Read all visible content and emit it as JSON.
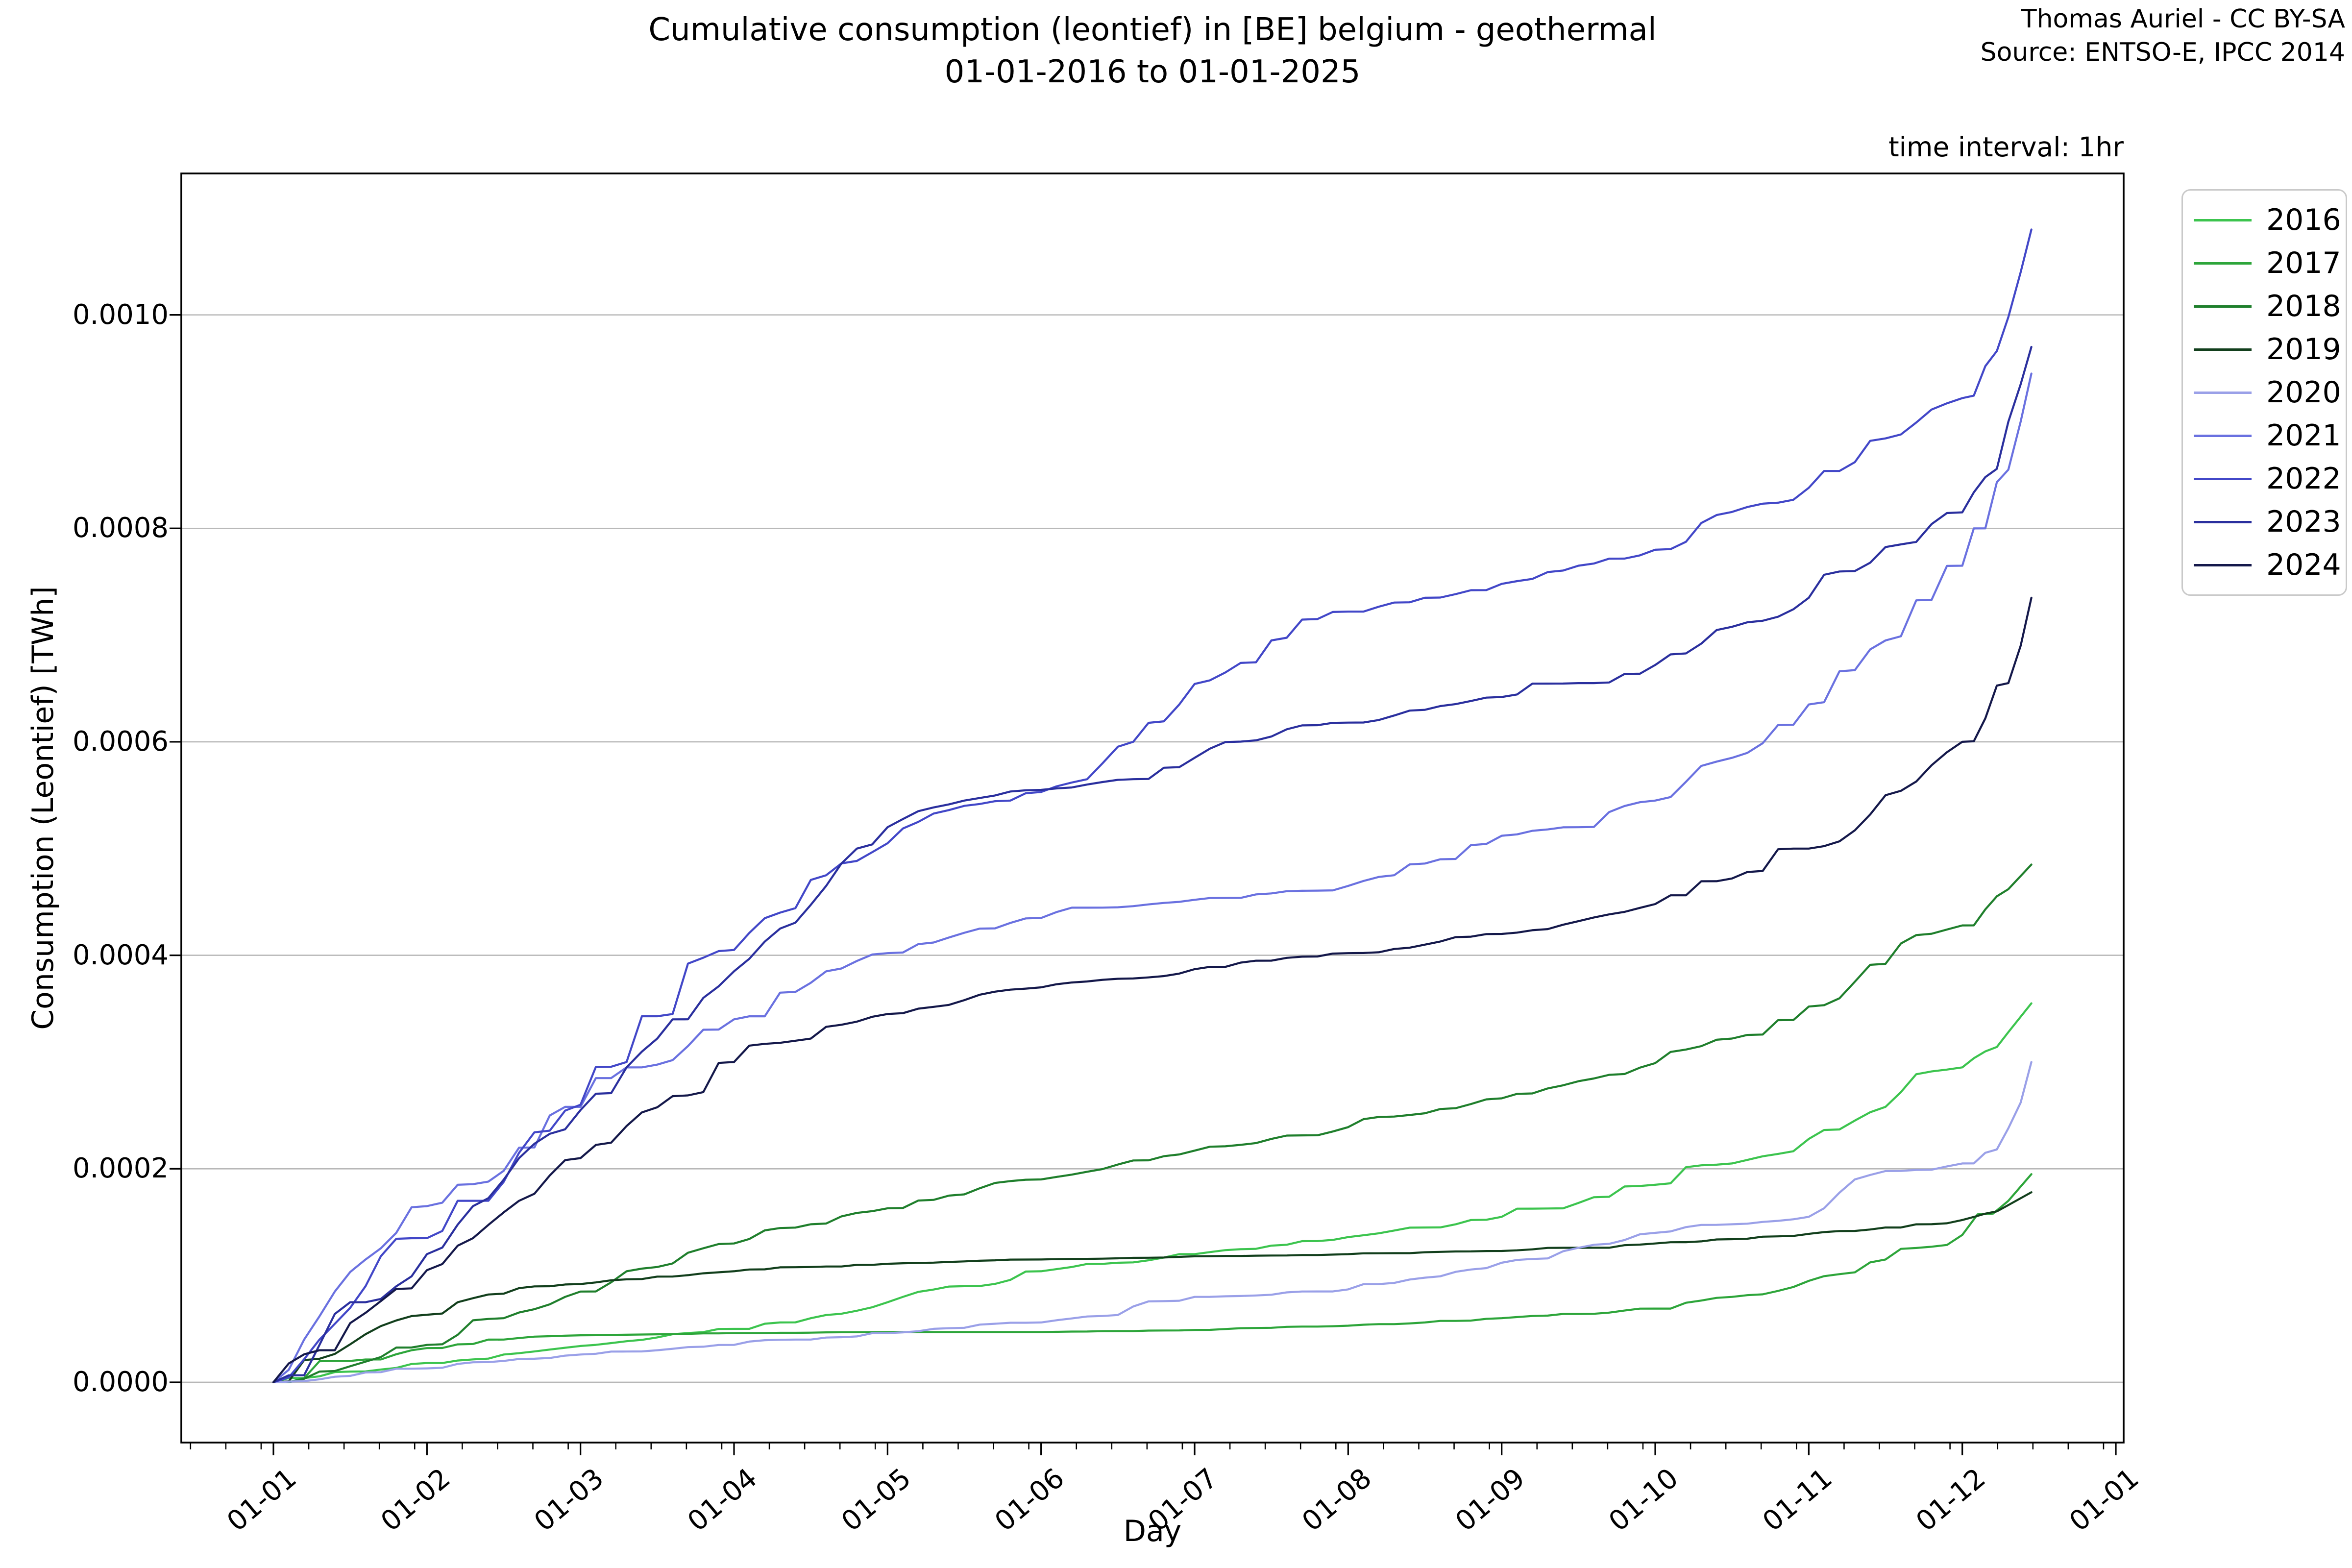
{
  "header": {
    "title_line1": "Cumulative consumption (leontief) in [BE] belgium - geothermal",
    "title_line2": "01-01-2016 to 01-01-2025",
    "attribution_line1": "Thomas Auriel - CC BY-SA",
    "attribution_line2": "Source: ENTSO-E, IPCC 2014",
    "time_interval_note": "time interval: 1hr"
  },
  "chart_data": {
    "type": "line",
    "title": "Cumulative consumption (leontief) in [BE] belgium - geothermal\n01-01-2016 to 01-01-2025",
    "xlabel": "Day",
    "ylabel": "Consumption (Leontief) [TWh]",
    "x_unit": "months since 01-01",
    "xlim": [
      -0.6,
      12.051
    ],
    "ylim": [
      -5.65e-05,
      0.0011325
    ],
    "grid": "horizontal",
    "grid_color": "#b7b7b7",
    "frame_color": "#000000",
    "legend_position": "upper right outside",
    "x_ticks": [
      0,
      1,
      2,
      3,
      4,
      5,
      6,
      7,
      8,
      9,
      10,
      11,
      12
    ],
    "x_tick_labels": [
      "01-01",
      "01-02",
      "01-03",
      "01-04",
      "01-05",
      "01-06",
      "01-07",
      "01-08",
      "01-09",
      "01-10",
      "01-11",
      "01-12",
      "01-01"
    ],
    "y_ticks": [
      0.0,
      0.0002,
      0.0004,
      0.0006,
      0.0008,
      0.001
    ],
    "y_tick_labels": [
      "0.0000",
      "0.0002",
      "0.0004",
      "0.0006",
      "0.0008",
      "0.0010"
    ],
    "series": [
      {
        "name": "2016",
        "color": "#3cc44e",
        "x": [
          0,
          0.5,
          1,
          1.5,
          2,
          2.5,
          3,
          3.5,
          4,
          4.5,
          5,
          5.5,
          6,
          6.5,
          7,
          7.5,
          8,
          8.5,
          9,
          9.5,
          10,
          10.5,
          11,
          11.15,
          11.3,
          11.45
        ],
        "y": [
          0,
          1e-05,
          1.8e-05,
          2.6e-05,
          3.4e-05,
          4.2e-05,
          5e-05,
          6e-05,
          7.5e-05,
          9e-05,
          0.000104,
          0.000112,
          0.00012,
          0.000128,
          0.000136,
          0.000145,
          0.000155,
          0.000168,
          0.000185,
          0.000205,
          0.000228,
          0.000258,
          0.000295,
          0.00031,
          0.000328,
          0.000355
        ]
      },
      {
        "name": "2017",
        "color": "#2da53a",
        "x": [
          0,
          0.5,
          1,
          1.5,
          2,
          3,
          4,
          5,
          6,
          6.5,
          7,
          7.5,
          8,
          8.5,
          9,
          9.5,
          10,
          10.5,
          11,
          11.2,
          11.3,
          11.45
        ],
        "y": [
          0,
          2e-05,
          3.2e-05,
          4e-05,
          4.4e-05,
          4.6e-05,
          4.7e-05,
          4.7e-05,
          4.9e-05,
          5.1e-05,
          5.3e-05,
          5.6e-05,
          6e-05,
          6.4e-05,
          6.9e-05,
          8e-05,
          9.5e-05,
          0.000115,
          0.000138,
          0.000158,
          0.00017,
          0.000195
        ]
      },
      {
        "name": "2018",
        "color": "#1f7f2c",
        "x": [
          0,
          0.5,
          1,
          1.5,
          2,
          2.5,
          3,
          3.5,
          4,
          4.5,
          5,
          5.5,
          6,
          6.5,
          7,
          7.5,
          8,
          8.5,
          9,
          9.5,
          10,
          10.5,
          11,
          11.15,
          11.3,
          11.45
        ],
        "y": [
          0,
          1.5e-05,
          3.5e-05,
          6e-05,
          8.5e-05,
          0.000108,
          0.00013,
          0.000148,
          0.000163,
          0.000176,
          0.00019,
          0.000204,
          0.000217,
          0.000228,
          0.000239,
          0.000252,
          0.000266,
          0.000282,
          0.000299,
          0.000322,
          0.000352,
          0.000392,
          0.000428,
          0.000443,
          0.000462,
          0.000485
        ]
      },
      {
        "name": "2019",
        "color": "#123f1c",
        "x": [
          0,
          0.3,
          0.6,
          0.9,
          1.2,
          1.5,
          2,
          2.5,
          3,
          3.5,
          4,
          5,
          6,
          7,
          8,
          8.5,
          9,
          9.5,
          10,
          10.5,
          11,
          11.15,
          11.3,
          11.45
        ],
        "y": [
          0,
          2.2e-05,
          4.5e-05,
          6.2e-05,
          7.5e-05,
          8.3e-05,
          9.2e-05,
          9.9e-05,
          0.000104,
          0.000108,
          0.000111,
          0.000115,
          0.000118,
          0.00012,
          0.000123,
          0.000126,
          0.00013,
          0.000134,
          0.000139,
          0.000145,
          0.000152,
          0.000158,
          0.000166,
          0.000178
        ]
      },
      {
        "name": "2020",
        "color": "#9aa0e8",
        "x": [
          0,
          0.5,
          1,
          1.5,
          2,
          2.5,
          3,
          3.5,
          4,
          4.5,
          5,
          5.5,
          5.8,
          6,
          6.5,
          7,
          7.5,
          8,
          8.5,
          9,
          9.5,
          10,
          10.3,
          10.6,
          11,
          11.15,
          11.3,
          11.38,
          11.45
        ],
        "y": [
          0,
          6e-06,
          1.3e-05,
          2e-05,
          2.6e-05,
          3e-05,
          3.5e-05,
          4e-05,
          4.6e-05,
          5.1e-05,
          5.6e-05,
          6.3e-05,
          7.6e-05,
          8e-05,
          8.2e-05,
          8.7e-05,
          9.8e-05,
          0.000112,
          0.000126,
          0.00014,
          0.000148,
          0.000155,
          0.00019,
          0.000198,
          0.000205,
          0.000215,
          0.000238,
          0.000262,
          0.0003
        ]
      },
      {
        "name": "2021",
        "color": "#6a71e0",
        "x": [
          0,
          0.2,
          0.4,
          0.6,
          0.8,
          1,
          1.2,
          1.4,
          1.7,
          2,
          2.2,
          2.4,
          2.7,
          3,
          3.3,
          3.6,
          4,
          4.3,
          4.6,
          5,
          5.5,
          6,
          6.5,
          7,
          7.3,
          7.6,
          8,
          8.5,
          9,
          9.5,
          10,
          10.5,
          11,
          11.15,
          11.3,
          11.38,
          11.45
        ],
        "y": [
          0,
          4e-05,
          8.5e-05,
          0.000115,
          0.00014,
          0.000165,
          0.000185,
          0.000188,
          0.00022,
          0.000258,
          0.000285,
          0.000295,
          0.000315,
          0.00034,
          0.000365,
          0.000385,
          0.000402,
          0.000412,
          0.000425,
          0.000435,
          0.000445,
          0.000452,
          0.000458,
          0.000465,
          0.000475,
          0.00049,
          0.000512,
          0.00052,
          0.000545,
          0.000585,
          0.000635,
          0.000695,
          0.000765,
          0.0008,
          0.000855,
          0.0009,
          0.000945
        ]
      },
      {
        "name": "2022",
        "color": "#4247c8",
        "x": [
          0,
          0.3,
          0.6,
          1,
          1.3,
          1.6,
          2,
          2.3,
          2.6,
          3,
          3.3,
          3.6,
          4,
          4.2,
          4.5,
          4.8,
          5,
          5.3,
          5.6,
          5.9,
          6.2,
          6.5,
          6.8,
          7,
          7.5,
          8,
          8.5,
          9,
          9.3,
          9.6,
          10,
          10.3,
          10.6,
          11,
          11.15,
          11.3,
          11.38,
          11.45
        ],
        "y": [
          0,
          4e-05,
          9e-05,
          0.000135,
          0.00017,
          0.000215,
          0.00026,
          0.0003,
          0.000345,
          0.000405,
          0.00044,
          0.000475,
          0.000505,
          0.000525,
          0.00054,
          0.000545,
          0.000553,
          0.000565,
          0.0006,
          0.000635,
          0.000665,
          0.000695,
          0.000715,
          0.000722,
          0.000735,
          0.000748,
          0.000765,
          0.00078,
          0.000805,
          0.00082,
          0.000838,
          0.000862,
          0.000888,
          0.000922,
          0.000952,
          0.000998,
          0.00104,
          0.00108
        ]
      },
      {
        "name": "2023",
        "color": "#2a2f9e",
        "x": [
          0,
          0.3,
          0.6,
          1,
          1.3,
          1.6,
          2,
          2.3,
          2.6,
          3,
          3.3,
          3.6,
          3.8,
          4,
          4.2,
          4.5,
          5,
          5.3,
          5.6,
          6,
          6.5,
          7,
          7.5,
          8,
          8.5,
          9,
          9.3,
          9.6,
          10,
          10.3,
          10.6,
          11,
          11.15,
          11.3,
          11.38,
          11.45
        ],
        "y": [
          0,
          3.5e-05,
          7.5e-05,
          0.00012,
          0.000165,
          0.00021,
          0.000255,
          0.000295,
          0.00034,
          0.000385,
          0.000425,
          0.000465,
          0.0005,
          0.00052,
          0.000535,
          0.000545,
          0.000555,
          0.00056,
          0.000565,
          0.000585,
          0.000605,
          0.000618,
          0.00063,
          0.000642,
          0.000655,
          0.000672,
          0.000692,
          0.000712,
          0.000735,
          0.00076,
          0.000785,
          0.000815,
          0.000848,
          0.0009,
          0.000935,
          0.00097
        ]
      },
      {
        "name": "2024",
        "color": "#14184a",
        "x": [
          0,
          0.3,
          0.6,
          1,
          1.3,
          1.6,
          2,
          2.3,
          2.6,
          3,
          3.3,
          3.6,
          4,
          4.5,
          5,
          5.5,
          6,
          6.5,
          7,
          7.5,
          8,
          8.5,
          9,
          9.5,
          10,
          10.5,
          11,
          11.15,
          11.3,
          11.38,
          11.45
        ],
        "y": [
          0,
          3e-05,
          6.5e-05,
          0.000105,
          0.000135,
          0.00017,
          0.00021,
          0.00024,
          0.000268,
          0.0003,
          0.000318,
          0.000333,
          0.000345,
          0.000358,
          0.00037,
          0.000378,
          0.000387,
          0.000395,
          0.000402,
          0.00041,
          0.00042,
          0.000432,
          0.000448,
          0.000472,
          0.0005,
          0.00055,
          0.0006,
          0.000622,
          0.000655,
          0.00069,
          0.000735
        ]
      }
    ]
  },
  "legend": {
    "entries": [
      "2016",
      "2017",
      "2018",
      "2019",
      "2020",
      "2021",
      "2022",
      "2023",
      "2024"
    ]
  }
}
